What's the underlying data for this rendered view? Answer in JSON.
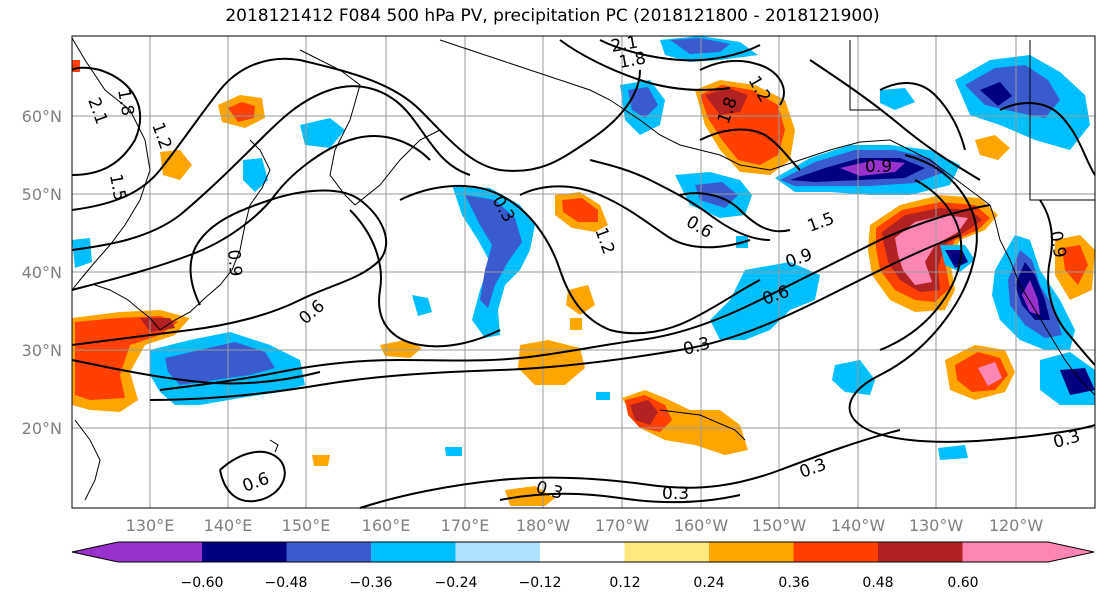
{
  "title": "2018121412 F084 500 hPa PV, precipitation PC (2018121800 - 2018121900)",
  "map": {
    "lat_labels": [
      "60°N",
      "50°N",
      "40°N",
      "30°N",
      "20°N"
    ],
    "lon_labels": [
      "130°E",
      "140°E",
      "150°E",
      "160°E",
      "170°E",
      "180°W",
      "170°W",
      "160°W",
      "150°W",
      "140°W",
      "130°W",
      "120°W"
    ],
    "pv_contour_labels": [
      "2.1",
      "1.8",
      "1.2",
      "1.5",
      "0.9",
      "0.6",
      "0.3",
      "1.5",
      "0.9",
      "0.6",
      "0.3",
      "0.3",
      "0.3",
      "0.3",
      "0.3",
      "0.6",
      "0.6",
      "0.9",
      "1.2",
      "1.8",
      "2.1",
      "1.8",
      "1.2",
      "0.9"
    ]
  },
  "colorbar": {
    "ticks": [
      "−0.60",
      "−0.48",
      "−0.36",
      "−0.24",
      "−0.12",
      "0.12",
      "0.24",
      "0.36",
      "0.48",
      "0.60"
    ],
    "colors": [
      "#9932cc",
      "#000080",
      "#3a5bcd",
      "#00bfff",
      "#aee2ff",
      "#ffffff",
      "#ffe97f",
      "#ffa500",
      "#ff4000",
      "#b22222",
      "#ff85b4"
    ]
  }
}
